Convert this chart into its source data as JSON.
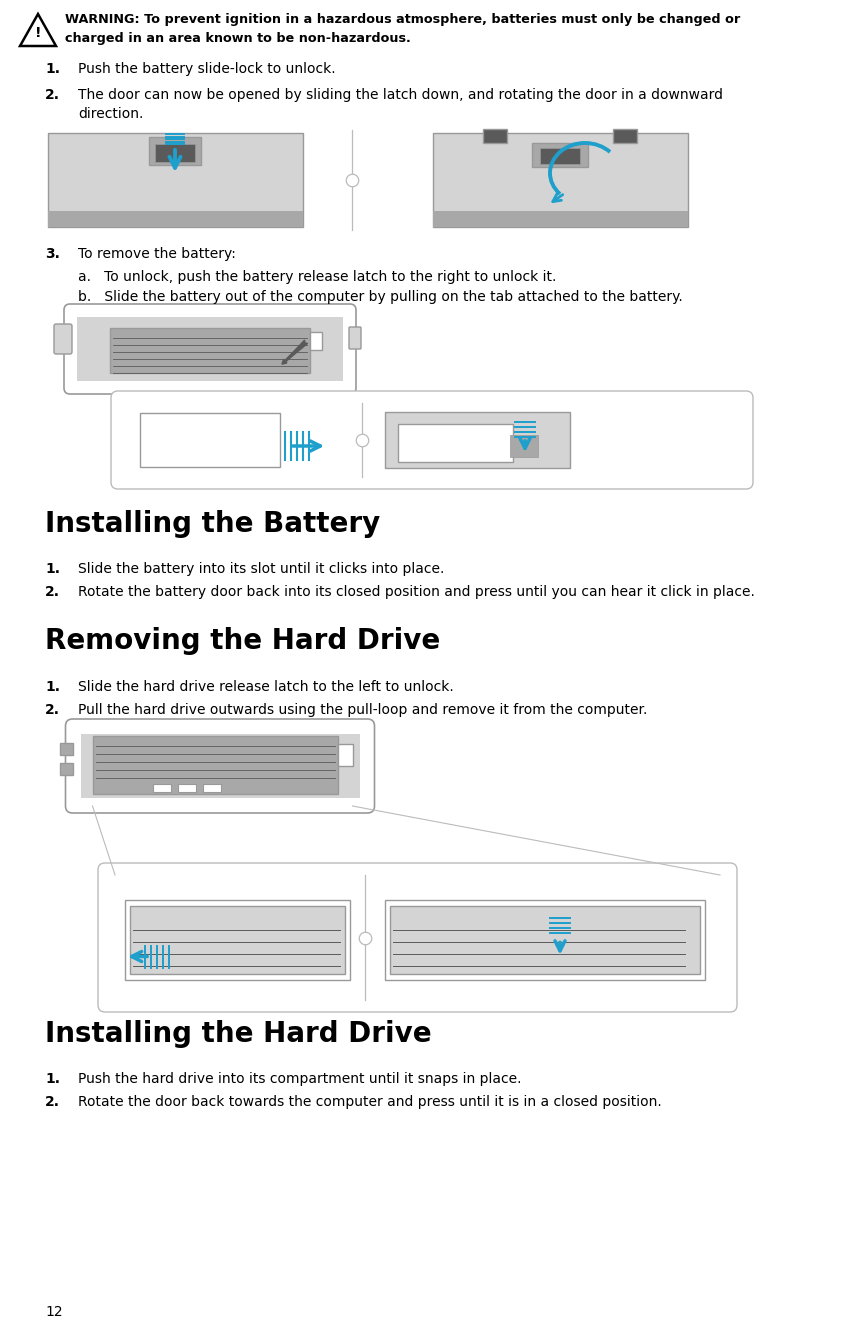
{
  "warning_line1": "WARNING: To prevent ignition in a hazardous atmosphere, batteries must only be changed or",
  "warning_line2": "charged in an area known to be non-hazardous.",
  "item1": "Push the battery slide-lock to unlock.",
  "item2a": "The door can now be opened by sliding the latch down, and rotating the door in a downward",
  "item2b": "direction.",
  "item3": "To remove the battery:",
  "item3a": "a.   To unlock, push the battery release latch to the right to unlock it.",
  "item3b": "b.   Slide the battery out of the computer by pulling on the tab attached to the battery.",
  "sec2_title": "Installing the Battery",
  "sec2_i1": "Slide the battery into its slot until it clicks into place.",
  "sec2_i2": "Rotate the battery door back into its closed position and press until you can hear it click in place.",
  "sec3_title": "Removing the Hard Drive",
  "sec3_i1": "Slide the hard drive release latch to the left to unlock.",
  "sec3_i2": "Pull the hard drive outwards using the pull-loop and remove it from the computer.",
  "sec4_title": "Installing the Hard Drive",
  "sec4_i1": "Push the hard drive into its compartment until it snaps in place.",
  "sec4_i2": "Rotate the door back towards the computer and press until it is in a closed position.",
  "page_num": "12",
  "bg": "#ffffff",
  "black": "#000000",
  "blue": "#1E9FCC",
  "lg": "#d4d4d4",
  "mg": "#a8a8a8",
  "dg": "#5a5a5a",
  "border": "#999999",
  "lborder": "#bbbbbb"
}
